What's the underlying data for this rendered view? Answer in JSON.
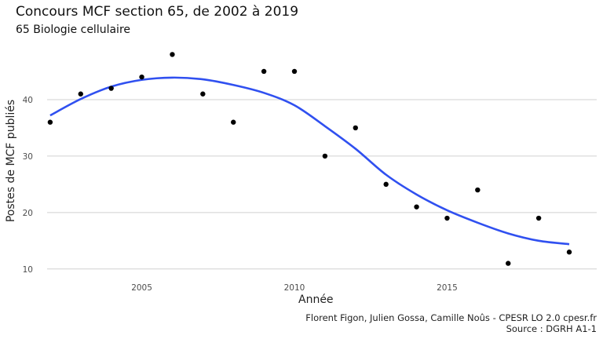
{
  "title": "Concours MCF section 65, de 2002 à 2019",
  "subtitle": "65 Biologie cellulaire",
  "caption": {
    "line1": "Florent Figon, Julien Gossa, Camille Noûs - CPESR LO 2.0 cpesr.fr",
    "line2": "Source : DGRH A1-1"
  },
  "colors": {
    "points": "#000000",
    "smooth_line": "#3050f0",
    "grid": "#d0d0d0"
  },
  "chart_data": {
    "type": "scatter",
    "xlabel": "Année",
    "ylabel": "Postes de MCF publiés",
    "xlim": [
      2001.9,
      2019.9
    ],
    "ylim": [
      9,
      50
    ],
    "grid": "horizontal",
    "x_ticks": [
      2005,
      2010,
      2015
    ],
    "y_ticks": [
      10,
      20,
      30,
      40
    ],
    "points": [
      {
        "x": 2002,
        "y": 36
      },
      {
        "x": 2003,
        "y": 41
      },
      {
        "x": 2004,
        "y": 42
      },
      {
        "x": 2005,
        "y": 44
      },
      {
        "x": 2006,
        "y": 48
      },
      {
        "x": 2007,
        "y": 41
      },
      {
        "x": 2008,
        "y": 36
      },
      {
        "x": 2009,
        "y": 45
      },
      {
        "x": 2010,
        "y": 45
      },
      {
        "x": 2011,
        "y": 30
      },
      {
        "x": 2012,
        "y": 35
      },
      {
        "x": 2013,
        "y": 25
      },
      {
        "x": 2014,
        "y": 21
      },
      {
        "x": 2015,
        "y": 19
      },
      {
        "x": 2016,
        "y": 24
      },
      {
        "x": 2017,
        "y": 11
      },
      {
        "x": 2018,
        "y": 19
      },
      {
        "x": 2019,
        "y": 13
      }
    ],
    "smooth": [
      {
        "x": 2002,
        "y": 37.2
      },
      {
        "x": 2003,
        "y": 40.1
      },
      {
        "x": 2004,
        "y": 42.3
      },
      {
        "x": 2005,
        "y": 43.5
      },
      {
        "x": 2006,
        "y": 43.9
      },
      {
        "x": 2007,
        "y": 43.6
      },
      {
        "x": 2008,
        "y": 42.6
      },
      {
        "x": 2009,
        "y": 41.2
      },
      {
        "x": 2010,
        "y": 39.0
      },
      {
        "x": 2011,
        "y": 35.3
      },
      {
        "x": 2012,
        "y": 31.3
      },
      {
        "x": 2013,
        "y": 26.7
      },
      {
        "x": 2014,
        "y": 23.2
      },
      {
        "x": 2015,
        "y": 20.4
      },
      {
        "x": 2016,
        "y": 18.2
      },
      {
        "x": 2017,
        "y": 16.3
      },
      {
        "x": 2018,
        "y": 15.0
      },
      {
        "x": 2019,
        "y": 14.4
      }
    ]
  }
}
